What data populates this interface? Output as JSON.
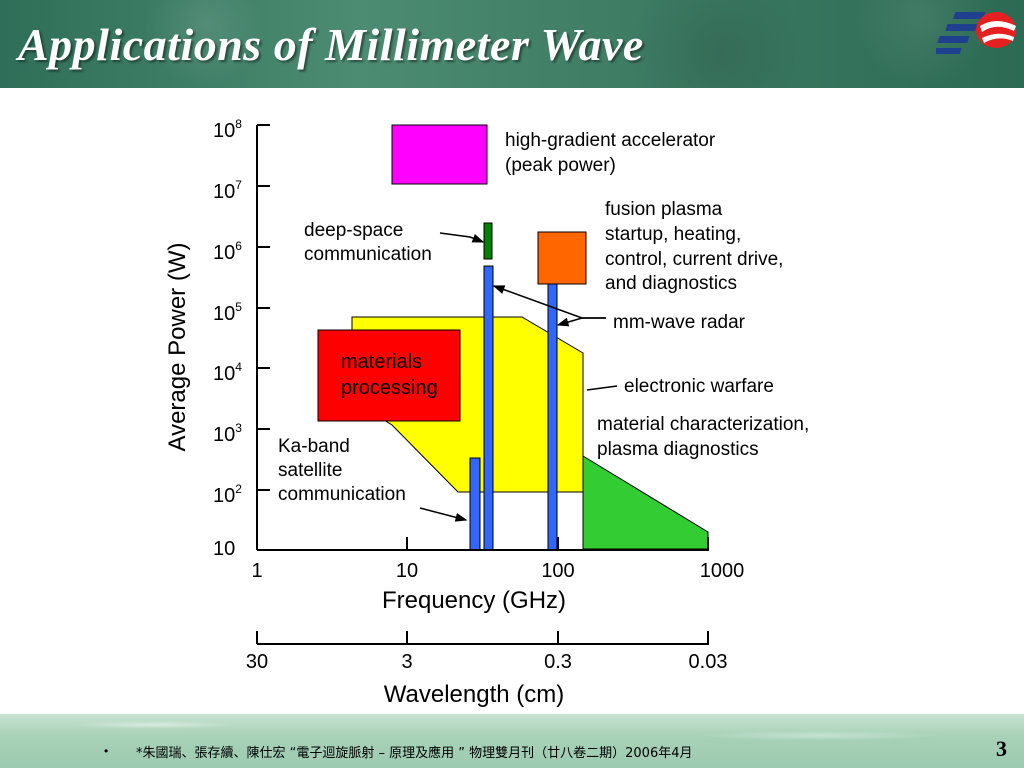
{
  "slide": {
    "title": "Applications of Millimeter Wave",
    "page_number": "3",
    "footer": {
      "bullet": "•",
      "citation": "*朱國瑞、張存續、陳仕宏 “電子迴旋脈射 – 原理及應用 ” 物理雙月刊（廿八卷二期）2006年4月"
    }
  },
  "colors": {
    "header": "#3f7d65",
    "footer": "#a8d2b8",
    "magenta": "#ff00ff",
    "green_bar": "#008000",
    "orange": "#ff6600",
    "blue": "#3366ff",
    "yellow": "#ffff00",
    "red": "#ff0000",
    "bright_green": "#33cc33"
  },
  "chart_data": {
    "type": "other",
    "xlabel": "Frequency (GHz)",
    "ylabel": "Average Power (W)",
    "x_scale": "log",
    "y_scale": "log",
    "x_ticks": [
      "1",
      "10",
      "100",
      "1000"
    ],
    "y_ticks": [
      {
        "base": "10",
        "exp": ""
      },
      {
        "base": "10",
        "exp": "2"
      },
      {
        "base": "10",
        "exp": "3"
      },
      {
        "base": "10",
        "exp": "4"
      },
      {
        "base": "10",
        "exp": "5"
      },
      {
        "base": "10",
        "exp": "6"
      },
      {
        "base": "10",
        "exp": "7"
      },
      {
        "base": "10",
        "exp": "8"
      }
    ],
    "secondary_axis": {
      "label": "Wavelength (cm)",
      "ticks": [
        "30",
        "3",
        "0.3",
        "0.03"
      ]
    },
    "labels": {
      "accelerator": [
        "high-gradient accelerator",
        "(peak power)"
      ],
      "fusion": [
        "fusion plasma",
        "startup, heating,",
        "control, current drive,",
        "and diagnostics"
      ],
      "deep_space": [
        "deep-space",
        "communication"
      ],
      "radar": "mm-wave radar",
      "materials": [
        "materials",
        "processing"
      ],
      "warfare": "electronic warfare",
      "characterization": [
        "material characterization,",
        "plasma diagnostics"
      ],
      "ka_band": [
        "Ka-band",
        "satellite",
        "communication"
      ]
    }
  }
}
